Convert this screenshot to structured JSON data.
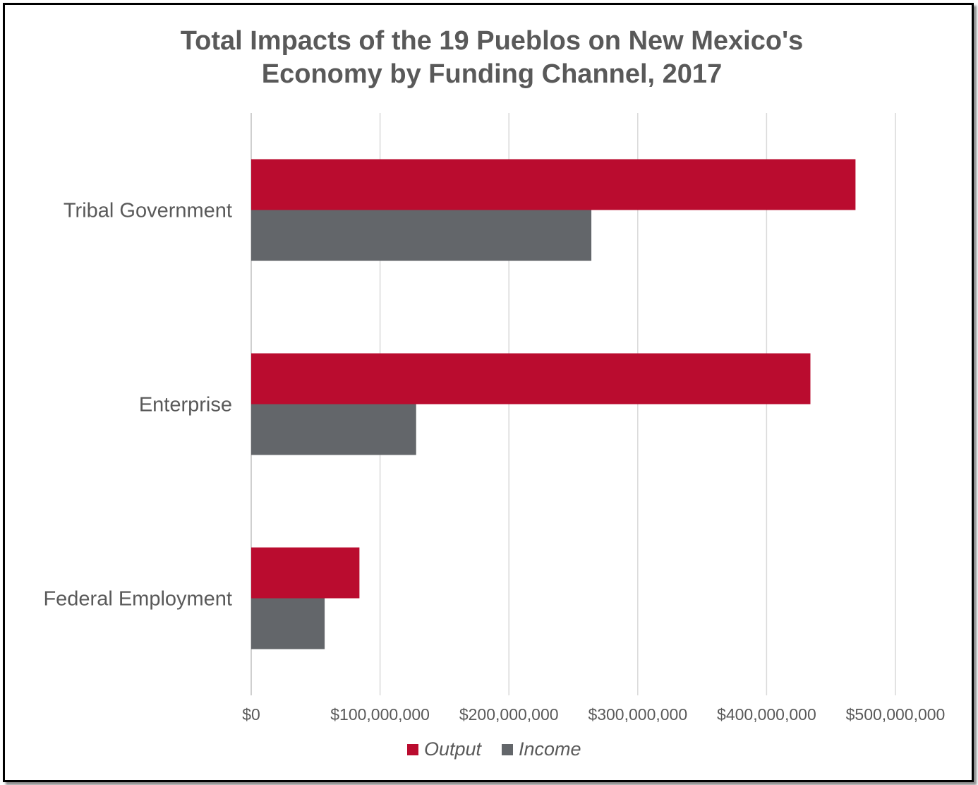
{
  "chart_data": {
    "type": "bar",
    "orientation": "horizontal",
    "title": "Total Impacts of the 19 Pueblos on New Mexico's Economy by Funding Channel, 2017",
    "title_lines": [
      "Total Impacts of the 19 Pueblos on New Mexico's",
      "Economy by Funding Channel, 2017"
    ],
    "categories": [
      "Tribal Government",
      "Enterprise",
      "Federal Employment"
    ],
    "series": [
      {
        "name": "Output",
        "color": "#BA0C2F",
        "values": [
          469000000,
          434000000,
          84000000
        ]
      },
      {
        "name": "Income",
        "color": "#63666A",
        "values": [
          264000000,
          128000000,
          57000000
        ]
      }
    ],
    "xlim": [
      0,
      500000000
    ],
    "x_ticks": [
      0,
      100000000,
      200000000,
      300000000,
      400000000,
      500000000
    ],
    "x_tick_labels": [
      "$0",
      "$100,000,000",
      "$200,000,000",
      "$300,000,000",
      "$400,000,000",
      "$500,000,000"
    ],
    "xlabel": "",
    "ylabel": "",
    "grid": "vertical",
    "legend": "bottom",
    "legend_style": "italic"
  }
}
